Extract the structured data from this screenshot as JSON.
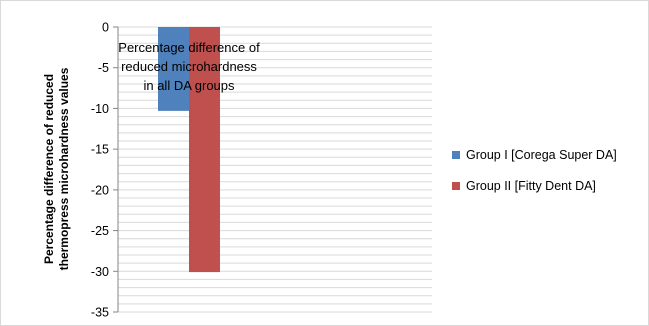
{
  "chart_data": {
    "type": "bar",
    "title_lines": [
      "Percentage difference of",
      "reduced microhardness",
      "in all DA groups"
    ],
    "ylabel_lines": [
      "Percentage difference of reduced",
      "thermopress microhardness values"
    ],
    "xlabel": "",
    "categories": [
      ""
    ],
    "ylim": [
      -35,
      0
    ],
    "yticks": [
      0,
      -5,
      -10,
      -15,
      -20,
      -25,
      -30,
      -35
    ],
    "ytick_labels": [
      "0",
      "-5",
      "-10",
      "-15",
      "-20",
      "-25",
      "-30",
      "-35"
    ],
    "grid": true,
    "legend_position": "right",
    "series": [
      {
        "name": "Group I [Corega Super DA]",
        "values": [
          -10.3
        ],
        "color": "#4f81bd"
      },
      {
        "name": "Group II [Fitty Dent DA]",
        "values": [
          -30.1
        ],
        "color": "#c0504d"
      }
    ]
  }
}
